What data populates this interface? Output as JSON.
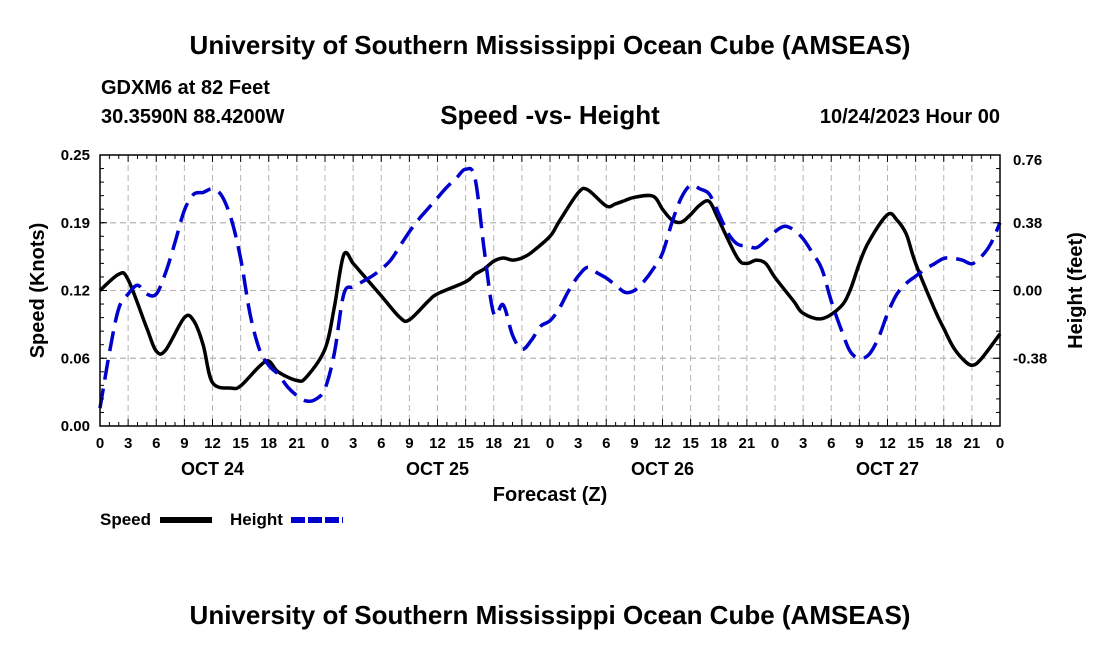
{
  "header": {
    "title": "University of Southern Mississippi Ocean Cube (AMSEAS)",
    "station": "GDXM6 at 82 Feet",
    "coordinates": "30.3590N  88.4200W",
    "subtitle": "Speed -vs- Height",
    "datetime": "10/24/2023 Hour 00"
  },
  "footer": {
    "title": "University of Southern Mississippi Ocean Cube (AMSEAS)"
  },
  "chart_data": {
    "type": "line",
    "xlabel": "Forecast (Z)",
    "ylabel": "Speed (Knots)",
    "y2label": "Height (feet)",
    "xlim": [
      0,
      96
    ],
    "ylim": [
      0,
      0.25
    ],
    "y2lim": [
      -0.76,
      0.76
    ],
    "yticks": [
      "0.00",
      "0.06",
      "0.12",
      "0.19",
      "0.25"
    ],
    "y2ticks": [
      "-0.38",
      "0.00",
      "0.38",
      "0.76"
    ],
    "xticks": [
      "0",
      "3",
      "6",
      "9",
      "12",
      "15",
      "18",
      "21",
      "0",
      "3",
      "6",
      "9",
      "12",
      "15",
      "18",
      "21",
      "0",
      "3",
      "6",
      "9",
      "12",
      "15",
      "18",
      "21",
      "0",
      "3",
      "6",
      "9",
      "12",
      "15",
      "18",
      "21",
      "0"
    ],
    "day_labels": [
      {
        "label": "OCT 24",
        "at": 12
      },
      {
        "label": "OCT 25",
        "at": 36
      },
      {
        "label": "OCT 26",
        "at": 60
      },
      {
        "label": "OCT 27",
        "at": 84
      }
    ],
    "grid": true,
    "legend_position": "bottom-left",
    "series": [
      {
        "name": "Speed",
        "axis": "left",
        "color": "#000000",
        "dash": "solid",
        "x": [
          0,
          2,
          3,
          5,
          6,
          7,
          9,
          10,
          11,
          12,
          14,
          15,
          17,
          18,
          19,
          21,
          22,
          24,
          25,
          26,
          27,
          28,
          30,
          32,
          33,
          35,
          36,
          39,
          40,
          41,
          42,
          43,
          44,
          45,
          46,
          48,
          49,
          51,
          52,
          54,
          55,
          56,
          57,
          59,
          60,
          61,
          62,
          63,
          64,
          65,
          66,
          68,
          69,
          70,
          71,
          72,
          74,
          75,
          77,
          79,
          80,
          81,
          82,
          84,
          85,
          86,
          87,
          89,
          90,
          91,
          92,
          93,
          94,
          96
        ],
        "values": [
          0.125,
          0.14,
          0.135,
          0.09,
          0.069,
          0.07,
          0.1,
          0.097,
          0.075,
          0.04,
          0.035,
          0.037,
          0.055,
          0.06,
          0.05,
          0.042,
          0.045,
          0.071,
          0.11,
          0.158,
          0.15,
          0.14,
          0.12,
          0.1,
          0.098,
          0.115,
          0.122,
          0.133,
          0.14,
          0.145,
          0.152,
          0.155,
          0.153,
          0.155,
          0.16,
          0.175,
          0.189,
          0.215,
          0.218,
          0.203,
          0.205,
          0.208,
          0.211,
          0.212,
          0.2,
          0.19,
          0.188,
          0.195,
          0.204,
          0.207,
          0.19,
          0.155,
          0.15,
          0.153,
          0.15,
          0.137,
          0.115,
          0.104,
          0.099,
          0.11,
          0.125,
          0.15,
          0.17,
          0.195,
          0.19,
          0.177,
          0.15,
          0.108,
          0.09,
          0.073,
          0.062,
          0.056,
          0.062,
          0.085
        ]
      },
      {
        "name": "Height",
        "axis": "right",
        "color": "#0000cc",
        "dash": "dashed",
        "x": [
          0,
          1,
          2,
          3,
          4,
          5,
          6,
          7,
          8,
          9,
          10,
          11,
          12,
          13,
          14,
          15,
          16,
          17,
          18,
          19,
          20,
          21,
          22,
          23,
          24,
          25,
          26,
          27,
          28,
          29,
          30,
          31,
          32,
          33,
          34,
          35,
          36,
          37,
          38,
          39,
          40,
          41,
          42,
          43,
          44,
          45,
          46,
          47,
          48,
          49,
          50,
          51,
          52,
          53,
          54,
          55,
          56,
          57,
          58,
          59,
          60,
          61,
          62,
          63,
          64,
          65,
          66,
          67,
          68,
          69,
          70,
          71,
          72,
          73,
          74,
          75,
          76,
          77,
          78,
          79,
          80,
          81,
          82,
          83,
          84,
          85,
          86,
          87,
          88,
          89,
          90,
          91,
          92,
          93,
          94,
          95,
          96
        ],
        "values": [
          -0.66,
          -0.35,
          -0.1,
          -0.02,
          0.03,
          -0.02,
          -0.02,
          0.1,
          0.27,
          0.45,
          0.54,
          0.55,
          0.57,
          0.53,
          0.4,
          0.18,
          -0.13,
          -0.33,
          -0.42,
          -0.47,
          -0.54,
          -0.59,
          -0.62,
          -0.61,
          -0.55,
          -0.35,
          -0.02,
          0.02,
          0.05,
          0.08,
          0.12,
          0.17,
          0.25,
          0.33,
          0.4,
          0.46,
          0.52,
          0.58,
          0.63,
          0.68,
          0.63,
          0.22,
          -0.13,
          -0.08,
          -0.25,
          -0.33,
          -0.28,
          -0.2,
          -0.17,
          -0.1,
          0.0,
          0.08,
          0.13,
          0.1,
          0.07,
          0.03,
          -0.01,
          0.0,
          0.05,
          0.12,
          0.21,
          0.38,
          0.52,
          0.59,
          0.57,
          0.54,
          0.43,
          0.32,
          0.26,
          0.25,
          0.24,
          0.28,
          0.33,
          0.36,
          0.34,
          0.29,
          0.21,
          0.12,
          -0.06,
          -0.21,
          -0.34,
          -0.38,
          -0.36,
          -0.27,
          -0.13,
          -0.02,
          0.04,
          0.08,
          0.12,
          0.15,
          0.18,
          0.18,
          0.17,
          0.15,
          0.19,
          0.26,
          0.38
        ]
      }
    ]
  }
}
